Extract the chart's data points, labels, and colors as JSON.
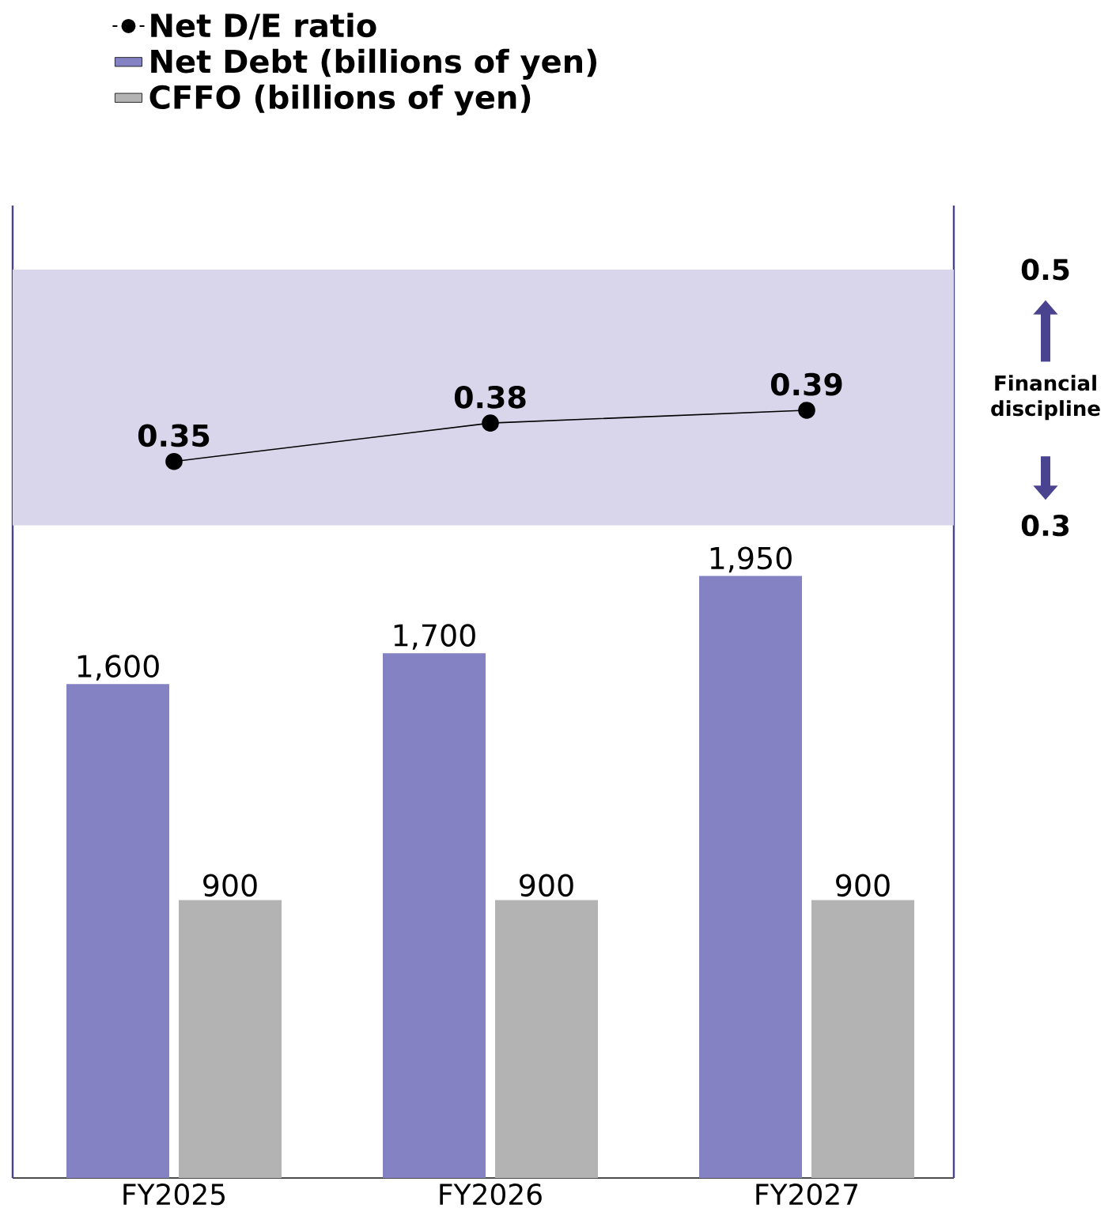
{
  "chart_data": {
    "type": "bar",
    "categories": [
      "FY2025",
      "FY2026",
      "FY2027"
    ],
    "series": [
      {
        "name": "Net D/E ratio",
        "type": "line",
        "axis": "y2",
        "color": "#000000",
        "values": [
          0.35,
          0.38,
          0.39
        ],
        "value_labels": [
          "0.35",
          "0.38",
          "0.39"
        ]
      },
      {
        "name": "Net Debt (billions of yen)",
        "color": "#8482c2",
        "values": [
          1600,
          1700,
          1950
        ],
        "value_labels": [
          "1,600",
          "1,700",
          "1,950"
        ]
      },
      {
        "name": "CFFO (billions of yen)",
        "color": "#b3b3b3",
        "values": [
          900,
          900,
          900
        ],
        "value_labels": [
          "900",
          "900",
          "900"
        ]
      }
    ],
    "ylim": [
      0,
      3150
    ],
    "y2lim": [
      -0.21,
      0.55
    ],
    "y2ticks": [
      0.3,
      0.5
    ],
    "bands": [
      {
        "axis": "y2",
        "from": 0.3,
        "to": 0.5,
        "label": "Financial discipline",
        "color": "#d9d6ec"
      }
    ],
    "legend": "top left",
    "marker": "circle"
  }
}
